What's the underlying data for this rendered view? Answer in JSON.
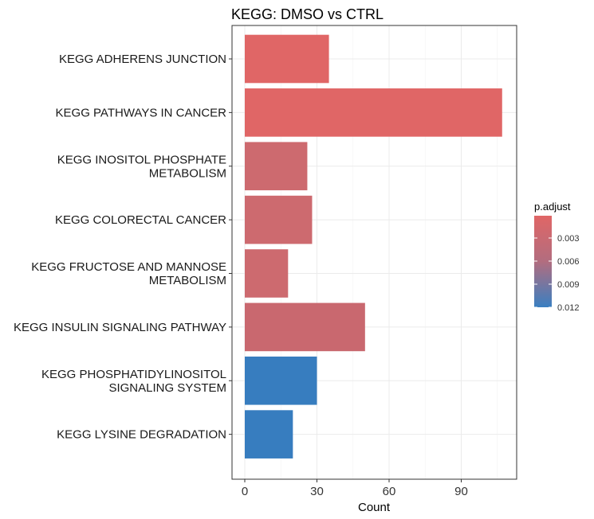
{
  "chart_data": {
    "type": "bar",
    "orientation": "horizontal",
    "title": "KEGG: DMSO vs CTRL",
    "xlabel": "Count",
    "ylabel": "",
    "xlim": [
      0,
      110
    ],
    "xticks": [
      0,
      30,
      60,
      90
    ],
    "grid": true,
    "categories": [
      [
        "KEGG ADHERENS JUNCTION"
      ],
      [
        "KEGG PATHWAYS IN CANCER"
      ],
      [
        "KEGG INOSITOL PHOSPHATE",
        "METABOLISM"
      ],
      [
        "KEGG COLORECTAL CANCER"
      ],
      [
        "KEGG FRUCTOSE AND MANNOSE",
        "METABOLISM"
      ],
      [
        "KEGG INSULIN SIGNALING PATHWAY"
      ],
      [
        "KEGG PHOSPHATIDYLINOSITOL",
        "SIGNALING SYSTEM"
      ],
      [
        "KEGG LYSINE DEGRADATION"
      ]
    ],
    "values": [
      35,
      107,
      26,
      28,
      18,
      50,
      30,
      20
    ],
    "colors": [
      "#e06666",
      "#e06666",
      "#cd6a6f",
      "#cd6a6f",
      "#cd6a6f",
      "#c9686f",
      "#377dbf",
      "#377dbf"
    ],
    "legend": {
      "title": "p.adjust",
      "position": "right",
      "gradient_top": "#e06666",
      "gradient_mid": "#b26d7f",
      "gradient_bottom": "#3a7fc1",
      "ticks": [
        "0.003",
        "0.006",
        "0.009",
        "0.012"
      ]
    }
  }
}
